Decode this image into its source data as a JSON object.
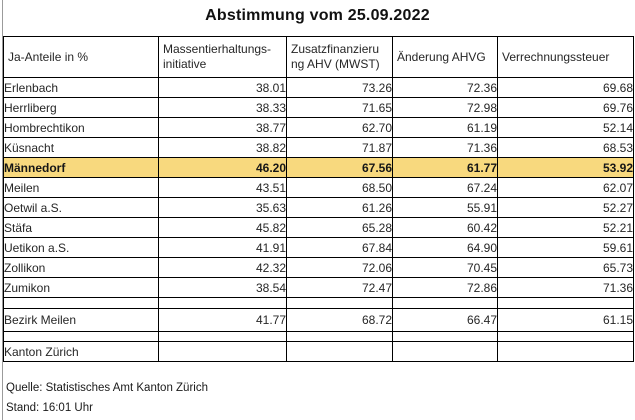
{
  "title": "Abstimmung vom 25.09.2022",
  "table": {
    "corner_label": "Ja-Anteile in %",
    "columns": [
      "Massentierhaltungs-\ninitiative",
      "Zusatzfinanzieru\nng AHV (MWST)",
      "Änderung AHVG",
      "Verrechnungssteuer"
    ],
    "highlight_color": "#F8D97E",
    "rows": [
      {
        "name": "Erlenbach",
        "values": [
          "38.01",
          "73.26",
          "72.36",
          "69.68"
        ]
      },
      {
        "name": "Herrliberg",
        "values": [
          "38.33",
          "71.65",
          "72.98",
          "69.76"
        ]
      },
      {
        "name": "Hombrechtikon",
        "values": [
          "38.77",
          "62.70",
          "61.19",
          "52.14"
        ]
      },
      {
        "name": "Küsnacht",
        "values": [
          "38.82",
          "71.87",
          "71.36",
          "68.53"
        ]
      },
      {
        "name": "Männedorf",
        "values": [
          "46.20",
          "67.56",
          "61.77",
          "53.92"
        ],
        "highlight": true
      },
      {
        "name": "Meilen",
        "values": [
          "43.51",
          "68.50",
          "67.24",
          "62.07"
        ]
      },
      {
        "name": "Oetwil a.S.",
        "values": [
          "35.63",
          "61.26",
          "55.91",
          "52.27"
        ]
      },
      {
        "name": "Stäfa",
        "values": [
          "45.82",
          "65.28",
          "60.42",
          "52.21"
        ]
      },
      {
        "name": "Uetikon a.S.",
        "values": [
          "41.91",
          "67.84",
          "64.90",
          "59.61"
        ]
      },
      {
        "name": "Zollikon",
        "values": [
          "42.32",
          "72.06",
          "70.45",
          "65.73"
        ]
      },
      {
        "name": "Zumikon",
        "values": [
          "38.54",
          "72.47",
          "72.86",
          "71.36"
        ]
      },
      {
        "separator": true
      },
      {
        "name": "Bezirk Meilen",
        "values": [
          "41.77",
          "68.72",
          "66.47",
          "61.15"
        ],
        "tall": true
      },
      {
        "separator": true,
        "small": true
      },
      {
        "name": "Kanton Zürich",
        "values": [
          "",
          "",
          "",
          ""
        ]
      }
    ]
  },
  "footer": {
    "source": "Quelle: Statistisches Amt Kanton Zürich",
    "status": "Stand: 16:01 Uhr"
  }
}
